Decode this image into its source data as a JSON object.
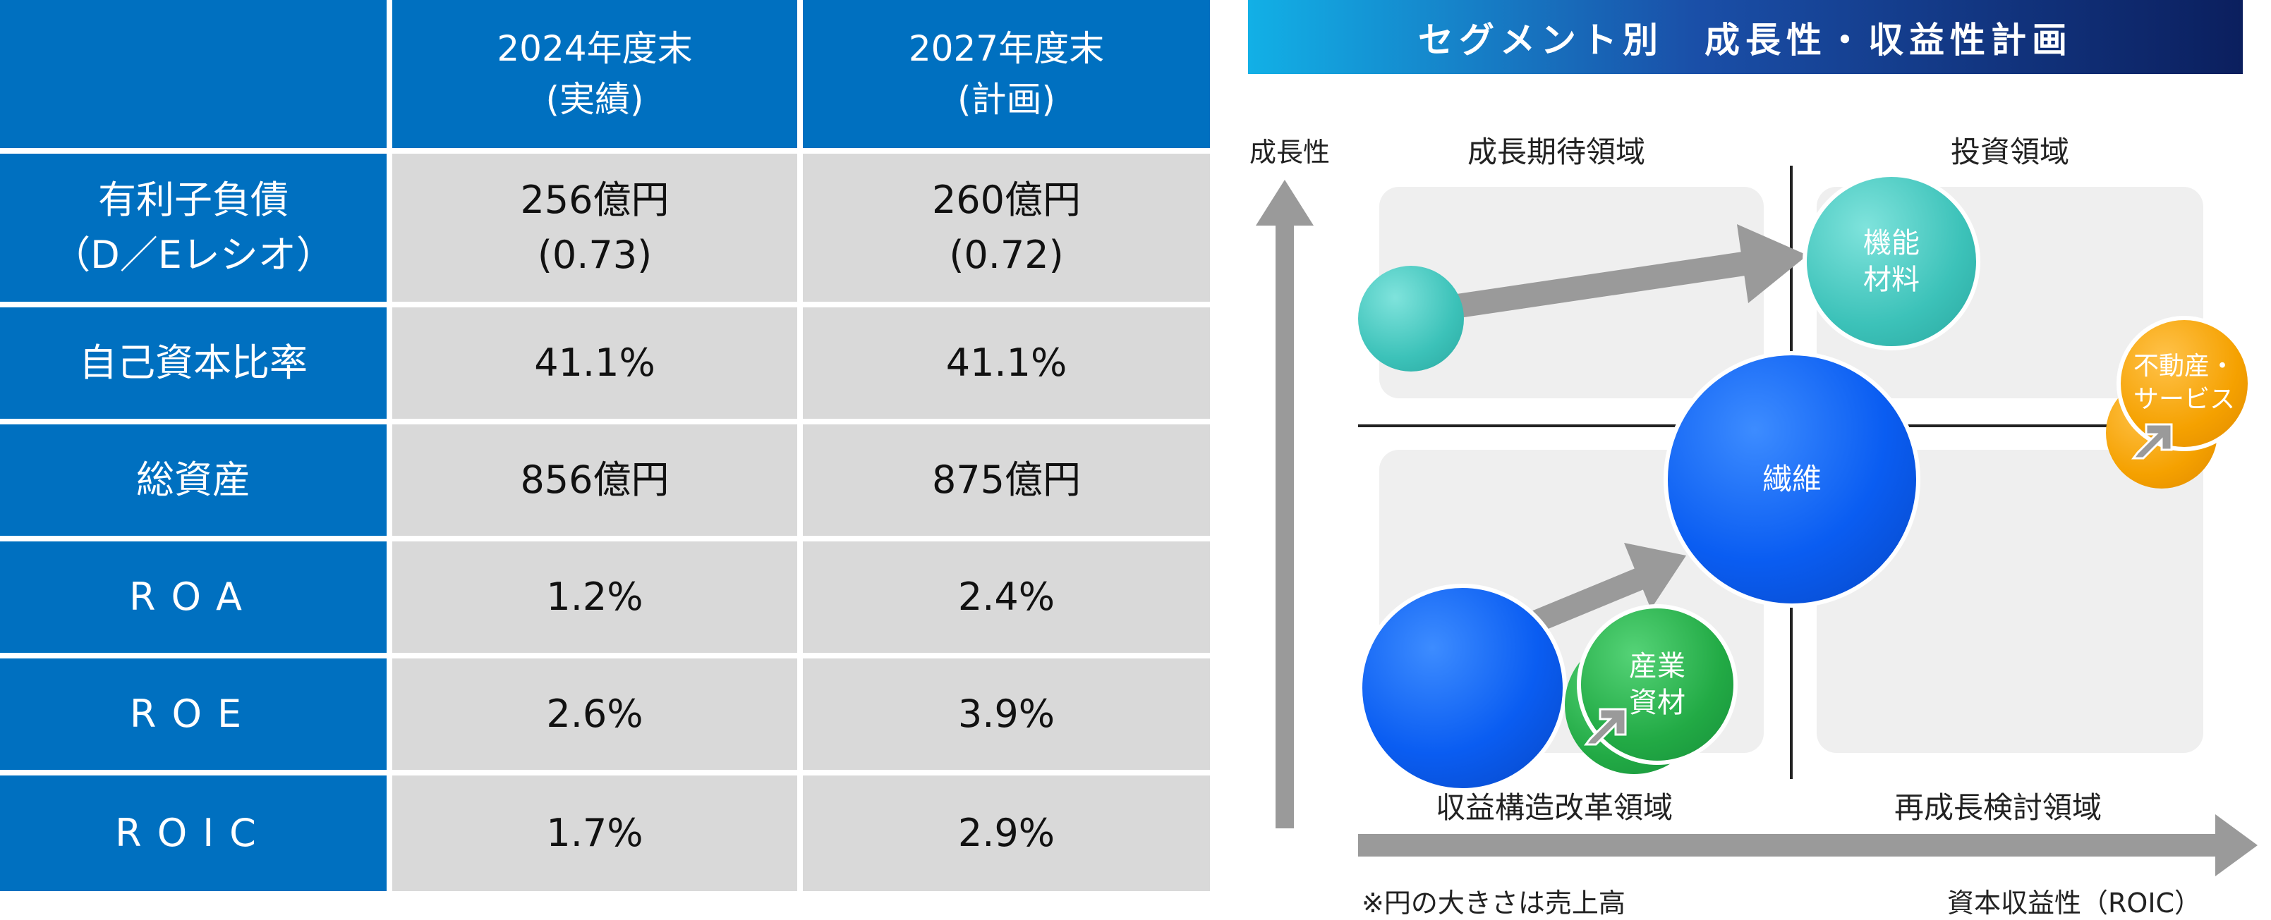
{
  "table": {
    "headers": [
      {
        "line1": "",
        "line2": ""
      },
      {
        "line1": "2024年度末",
        "line2": "(実績)"
      },
      {
        "line1": "2027年度末",
        "line2": "(計画)"
      }
    ],
    "rows": [
      {
        "label1": "有利子負債",
        "label2": "（D／Eレシオ）",
        "v2024_1": "256億円",
        "v2024_2": "(0.73)",
        "v2027_1": "260億円",
        "v2027_2": "(0.72)"
      },
      {
        "label1": "自己資本比率",
        "label2": "",
        "v2024_1": "41.1%",
        "v2024_2": "",
        "v2027_1": "41.1%",
        "v2027_2": ""
      },
      {
        "label1": "総資産",
        "label2": "",
        "v2024_1": "856億円",
        "v2024_2": "",
        "v2027_1": "875億円",
        "v2027_2": ""
      },
      {
        "label1": "ROA",
        "label2": "",
        "v2024_1": "1.2%",
        "v2024_2": "",
        "v2027_1": "2.4%",
        "v2027_2": ""
      },
      {
        "label1": "ROE",
        "label2": "",
        "v2024_1": "2.6%",
        "v2024_2": "",
        "v2027_1": "3.9%",
        "v2027_2": ""
      },
      {
        "label1": "ROIC",
        "label2": "",
        "v2024_1": "1.7%",
        "v2024_2": "",
        "v2027_1": "2.9%",
        "v2027_2": ""
      }
    ]
  },
  "diagram": {
    "title": "セグメント別　成長性・収益性計画",
    "y_axis_label": "成長性",
    "x_axis_label": "資本収益性（ROIC）",
    "footnote": "※円の大きさは売上高",
    "quadrants": {
      "top_left": "成長期待領域",
      "top_right": "投資領域",
      "bottom_left": "収益構造改革領域",
      "bottom_right": "再成長検討領域"
    },
    "bubbles": {
      "functional": {
        "line1": "機能",
        "line2": "材料"
      },
      "fiber": {
        "line1": "繊維"
      },
      "industrial": {
        "line1": "産業",
        "line2": "資材"
      },
      "realestate": {
        "line1": "不動産・",
        "line2": "サービス"
      }
    },
    "colors": {
      "header_blue": "#0070c0",
      "cell_gray": "#d9d9d9",
      "teal": "#3cc2b9",
      "blue": "#0a5df2",
      "green": "#22aa45",
      "orange": "#f5a100",
      "arrow_gray": "#9a9a9a"
    }
  }
}
